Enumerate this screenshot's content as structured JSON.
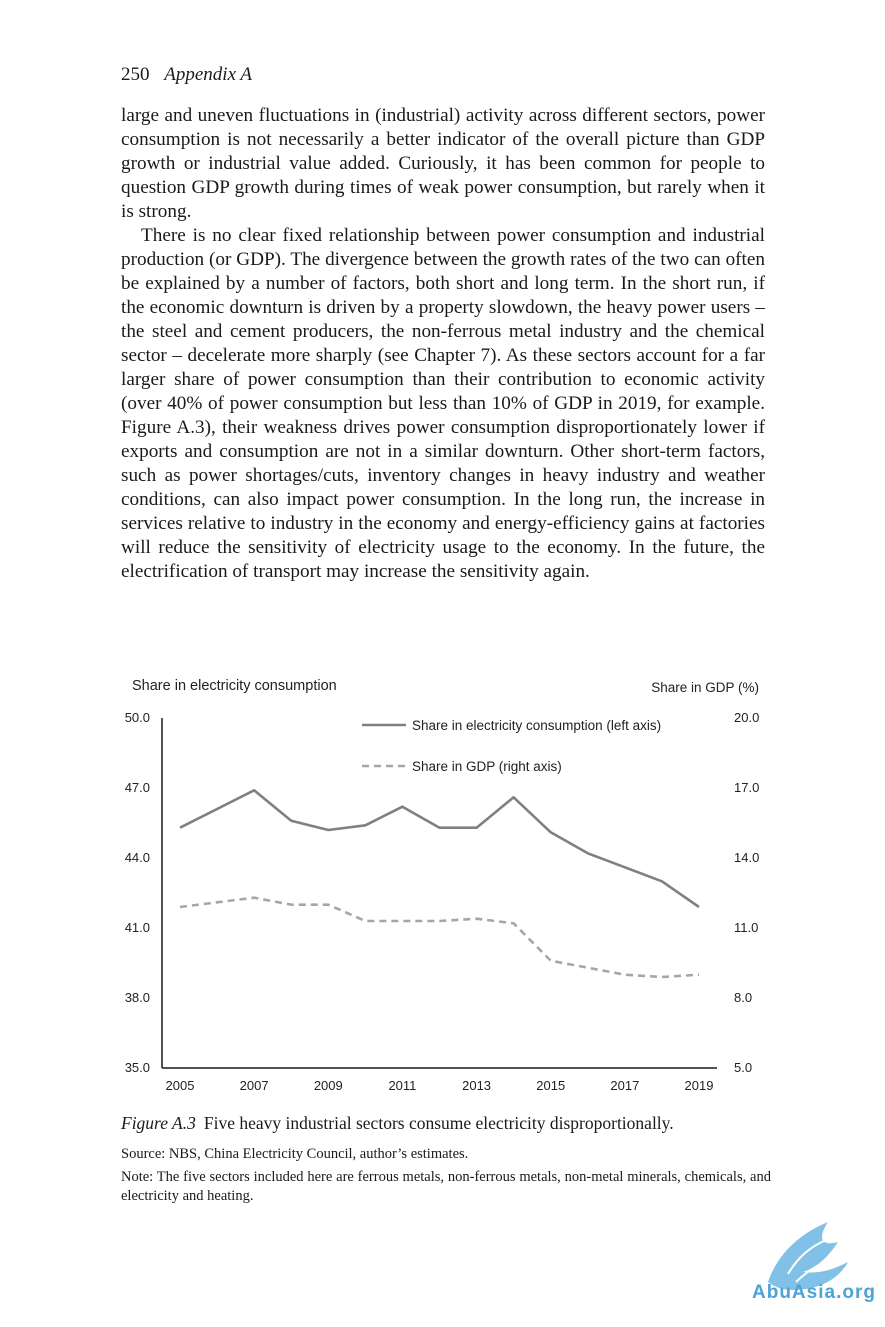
{
  "header": {
    "page_number": "250",
    "section": "Appendix A"
  },
  "paragraphs": [
    "large and uneven fluctuations in (industrial) activity across different sectors, power consumption is not necessarily a better indicator of the overall picture than GDP growth or industrial value added. Curiously, it has been common for people to question GDP growth during times of weak power consumption, but rarely when it is strong.",
    "There is no clear fixed relationship between power consumption and industrial production (or GDP). The divergence between the growth rates of the two can often be explained by a number of factors, both short and long term. In the short run, if the economic downturn is driven by a property slowdown, the heavy power users – the steel and cement producers, the non-ferrous metal industry and the chemical sector – decelerate more sharply (see Chapter 7). As these sectors account for a far larger share of power consumption than their contribution to economic activity (over 40% of power consumption but less than 10% of GDP in 2019, for example. Figure A.3), their weakness drives power consumption disproportionately lower if exports and consumption are not in a similar downturn. Other short-term factors, such as power shortages/cuts, inventory changes in heavy industry and weather conditions, can also impact power consumption. In the long run, the increase in services relative to industry in the economy and energy-efficiency gains at factories will reduce the sensitivity of electricity usage to the economy. In the future, the electrification of transport may increase the sensitivity again."
  ],
  "chart_data": {
    "type": "line",
    "left_axis_title": "Share in electricity consumption",
    "right_axis_title": "Share in GDP (%)",
    "left_ylim": [
      35.0,
      50.0
    ],
    "right_ylim": [
      5.0,
      20.0
    ],
    "left_ticks": [
      "35.0",
      "38.0",
      "41.0",
      "44.0",
      "47.0",
      "50.0"
    ],
    "right_ticks": [
      "5.0",
      "8.0",
      "11.0",
      "14.0",
      "17.0",
      "20.0"
    ],
    "x": [
      2005,
      2006,
      2007,
      2008,
      2009,
      2010,
      2011,
      2012,
      2013,
      2014,
      2015,
      2016,
      2017,
      2018,
      2019
    ],
    "x_tick_labels": [
      "2005",
      "2007",
      "2009",
      "2011",
      "2013",
      "2015",
      "2017",
      "2019"
    ],
    "grid": false,
    "legend_position": "top-center",
    "series": [
      {
        "name": "Share in electricity consumption (left axis)",
        "axis": "left",
        "style": "solid",
        "color": "#808080",
        "values": [
          45.3,
          46.1,
          46.9,
          45.6,
          45.2,
          45.4,
          46.2,
          45.3,
          45.3,
          46.6,
          45.1,
          44.2,
          43.6,
          43.0,
          41.9
        ]
      },
      {
        "name": "Share in GDP (right axis)",
        "axis": "right",
        "style": "dashed",
        "color": "#a6a6a6",
        "values": [
          11.9,
          12.1,
          12.3,
          12.0,
          12.0,
          11.3,
          11.3,
          11.3,
          11.4,
          11.2,
          9.6,
          9.3,
          9.0,
          8.9,
          9.0
        ]
      }
    ]
  },
  "caption": {
    "label": "Figure A.3",
    "text": "Five heavy industrial sectors consume electricity disproportionally."
  },
  "source": "Source: NBS, China Electricity Council, author’s estimates.",
  "note": "Note: The five sectors included here are ferrous metals, non-ferrous metals, non-metal minerals, chemicals, and electricity and heating.",
  "watermark": {
    "text": "AbuAsia.org",
    "icon": "bird-logo-icon",
    "color": "#4da3d8"
  }
}
